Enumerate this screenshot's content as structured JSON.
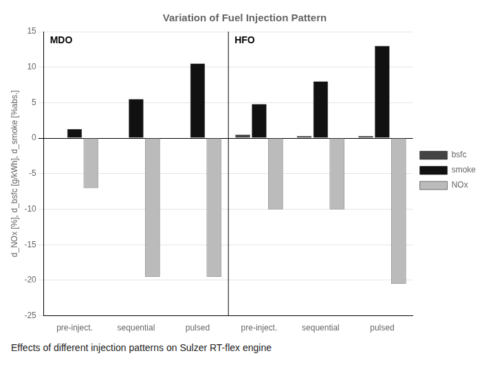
{
  "chart_data": {
    "type": "bar",
    "title": "Variation of Fuel Injection Pattern",
    "y_label": "d_NOx [%], d_bsfc [g/kWh], d_smoke [%abs.]",
    "categories": [
      "pre-inject.",
      "sequential",
      "pulsed",
      "pre-inject.",
      "sequential",
      "pulsed"
    ],
    "series": [
      {
        "name": "bsfc",
        "color": "#444444",
        "values": [
          0.0,
          0.0,
          0.0,
          0.5,
          0.3,
          0.3
        ]
      },
      {
        "name": "smoke",
        "color": "#111111",
        "values": [
          1.3,
          5.5,
          10.5,
          4.8,
          8.0,
          13.0
        ]
      },
      {
        "name": "NOx",
        "color": "#bbbbbb",
        "values": [
          -7.0,
          -19.5,
          -19.5,
          -10.0,
          -10.0,
          -20.5
        ]
      }
    ],
    "annotations": [
      "MDO",
      "HFO"
    ],
    "caption": "Effects of different injection patterns on Sulzer RT-flex engine",
    "ylim": [
      -25,
      15
    ],
    "yticks": [
      -25,
      -20,
      -15,
      -10,
      -5,
      0,
      5,
      10,
      15
    ],
    "grid": true,
    "legend": "right"
  }
}
